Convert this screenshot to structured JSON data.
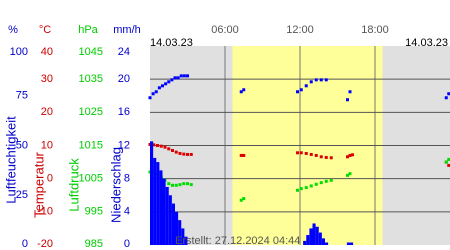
{
  "chart_data": {
    "type": "weather",
    "date_left": "14.03.23",
    "date_right": "14.03.23",
    "footer": "Erstellt: 27.12.2024 04:44",
    "xlim": [
      0,
      24
    ],
    "xticks": [
      {
        "value": 6,
        "label": "06:00"
      },
      {
        "value": 12,
        "label": "12:00"
      },
      {
        "value": 18,
        "label": "18:00"
      }
    ],
    "daylight": [
      6.6,
      18.6
    ],
    "grid": true,
    "axes": [
      {
        "unit": "%",
        "label": "Luftfeuchtigkeit",
        "color": "#0000cc",
        "lim": [
          0,
          100
        ],
        "ticks": [
          100,
          75,
          50,
          25,
          0
        ]
      },
      {
        "unit": "°C",
        "label": "Temperatur",
        "color": "#cc0000",
        "lim": [
          -20,
          40
        ],
        "ticks": [
          40,
          30,
          20,
          10,
          0,
          -10,
          -20
        ]
      },
      {
        "unit": "hPa",
        "label": "Luftdruck",
        "color": "#00cc00",
        "lim": [
          985,
          1045
        ],
        "ticks": [
          1045,
          1035,
          1025,
          1015,
          1005,
          995,
          985
        ]
      },
      {
        "unit": "mm/h",
        "label": "Niederschlag",
        "color": "#0000cc",
        "lim": [
          0,
          24
        ],
        "ticks": [
          24,
          20,
          16,
          12,
          8,
          4,
          0
        ]
      }
    ],
    "series": [
      {
        "kind": "points",
        "axis": 0,
        "color": "#0000ff",
        "x": [
          0,
          0.25,
          0.5,
          0.75,
          1,
          1.25,
          1.5,
          1.75,
          2,
          2.25,
          2.5,
          2.75,
          3,
          7.3,
          7.5,
          11.8,
          12.1,
          12.5,
          12.9,
          13.3,
          13.7,
          14.1,
          15.8,
          16,
          23.7,
          23.9
        ],
        "values": [
          74,
          76,
          77,
          79,
          80,
          81,
          82,
          83,
          84,
          84,
          85,
          85,
          85,
          77,
          78,
          77,
          78,
          80,
          82,
          83,
          83,
          83,
          73,
          77,
          74,
          76
        ]
      },
      {
        "kind": "points",
        "axis": 1,
        "color": "#dd0000",
        "x": [
          0,
          0.3,
          0.6,
          0.9,
          1.2,
          1.5,
          1.8,
          2.1,
          2.4,
          2.7,
          3,
          3.3,
          7.3,
          7.5,
          11.8,
          12.1,
          12.5,
          12.9,
          13.3,
          13.7,
          14.1,
          14.5,
          15.8,
          16,
          16.2,
          23.7,
          23.9
        ],
        "values": [
          10.3,
          10.2,
          10,
          9.8,
          9.5,
          9,
          8.5,
          8,
          7.6,
          7.4,
          7.3,
          7.3,
          7,
          7,
          7.8,
          7.8,
          7.6,
          7.3,
          7,
          6.6,
          6.4,
          6.3,
          6.6,
          7,
          7.2,
          5,
          4
        ]
      },
      {
        "kind": "points",
        "axis": 2,
        "color": "#00dd00",
        "x": [
          0,
          0.3,
          0.6,
          0.9,
          1.2,
          1.5,
          1.8,
          2.1,
          2.4,
          2.7,
          3,
          3.3,
          7.3,
          7.5,
          11.8,
          12.1,
          12.5,
          12.9,
          13.3,
          13.7,
          14.1,
          14.5,
          15.8,
          16,
          23.7,
          23.9
        ],
        "values": [
          1007,
          1006.7,
          1006.3,
          1005.5,
          1004.5,
          1003.5,
          1003,
          1003,
          1003.2,
          1003.5,
          1003.5,
          1003.2,
          998.5,
          999,
          1001.5,
          1002,
          1002.3,
          1002.8,
          1003.3,
          1003.8,
          1004.2,
          1004.5,
          1006,
          1006.5,
          1010,
          1010.8
        ]
      },
      {
        "kind": "bars",
        "axis": 3,
        "color": "#0000ff",
        "width": 0.25,
        "x": [
          0,
          0.25,
          0.5,
          0.75,
          1,
          1.25,
          1.5,
          1.75,
          2,
          2.25,
          2.5,
          2.75,
          12.25,
          12.5,
          12.75,
          13,
          13.25,
          13.5,
          13.75,
          14,
          15.75,
          16
        ],
        "values": [
          12.5,
          10.5,
          10,
          9,
          8,
          7,
          6,
          5,
          4,
          3,
          2,
          1,
          0.5,
          1.2,
          2,
          2.6,
          2.2,
          1.5,
          0.8,
          0.3,
          0.3,
          0.3
        ]
      }
    ]
  }
}
